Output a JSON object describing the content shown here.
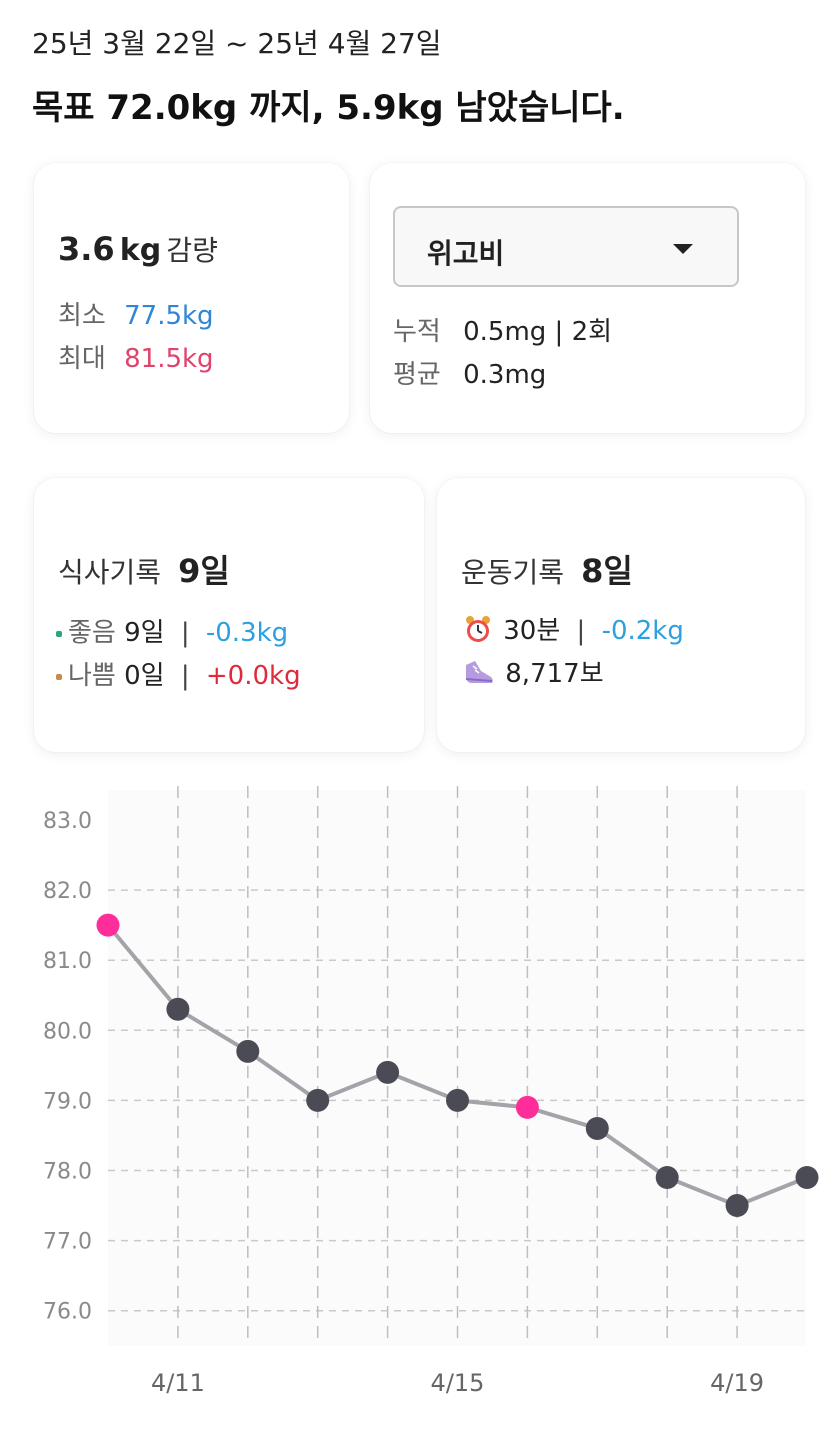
{
  "header": {
    "date_range": "25년 3월 22일 ~ 25년 4월 27일",
    "headline": "목표 72.0kg 까지, 5.9kg 남았습니다."
  },
  "weight_card": {
    "change_value": "3.6",
    "change_unit": "kg",
    "change_label": "감량",
    "min_label": "최소",
    "min_value": "77.5kg",
    "max_label": "최대",
    "max_value": "81.5kg"
  },
  "medication_card": {
    "selected": "위고비",
    "cumulative_label": "누적",
    "cumulative_value": "0.5mg | 2회",
    "average_label": "평균",
    "average_value": "0.3mg"
  },
  "meal_card": {
    "title": "식사기록",
    "days": "9일",
    "good_label": "좋음",
    "good_days": "9일",
    "good_change": "-0.3kg",
    "bad_label": "나쁨",
    "bad_days": "0일",
    "bad_change": "+0.0kg",
    "separator": "|"
  },
  "exercise_card": {
    "title": "운동기록",
    "days": "8일",
    "time_icon": "alarm-clock-icon",
    "time": "30분",
    "time_change": "-0.2kg",
    "steps_icon": "sneaker-icon",
    "steps": "8,717보",
    "separator": "|"
  },
  "colors": {
    "min_blue": "#2f86d6",
    "max_red": "#e0436b",
    "change_blue": "#2ea0e0",
    "change_red": "#e02a3c",
    "line": "#a3a3aa",
    "point": "#4b4b55",
    "highlight": "#ff2d9a",
    "grid": "#c9c9c9"
  },
  "chart_data": {
    "type": "line",
    "y_ticks": [
      "83.0",
      "82.0",
      "81.0",
      "80.0",
      "79.0",
      "78.0",
      "77.0",
      "76.0"
    ],
    "ylim": [
      76,
      83
    ],
    "x_labels": [
      "4/11",
      "4/15",
      "4/19"
    ],
    "x_label_index": [
      1,
      5,
      9
    ],
    "values": [
      81.5,
      80.3,
      79.7,
      79.0,
      79.4,
      79.0,
      78.9,
      78.6,
      77.9,
      77.5,
      77.9
    ],
    "highlight_index": [
      0,
      6
    ],
    "grid": true
  }
}
